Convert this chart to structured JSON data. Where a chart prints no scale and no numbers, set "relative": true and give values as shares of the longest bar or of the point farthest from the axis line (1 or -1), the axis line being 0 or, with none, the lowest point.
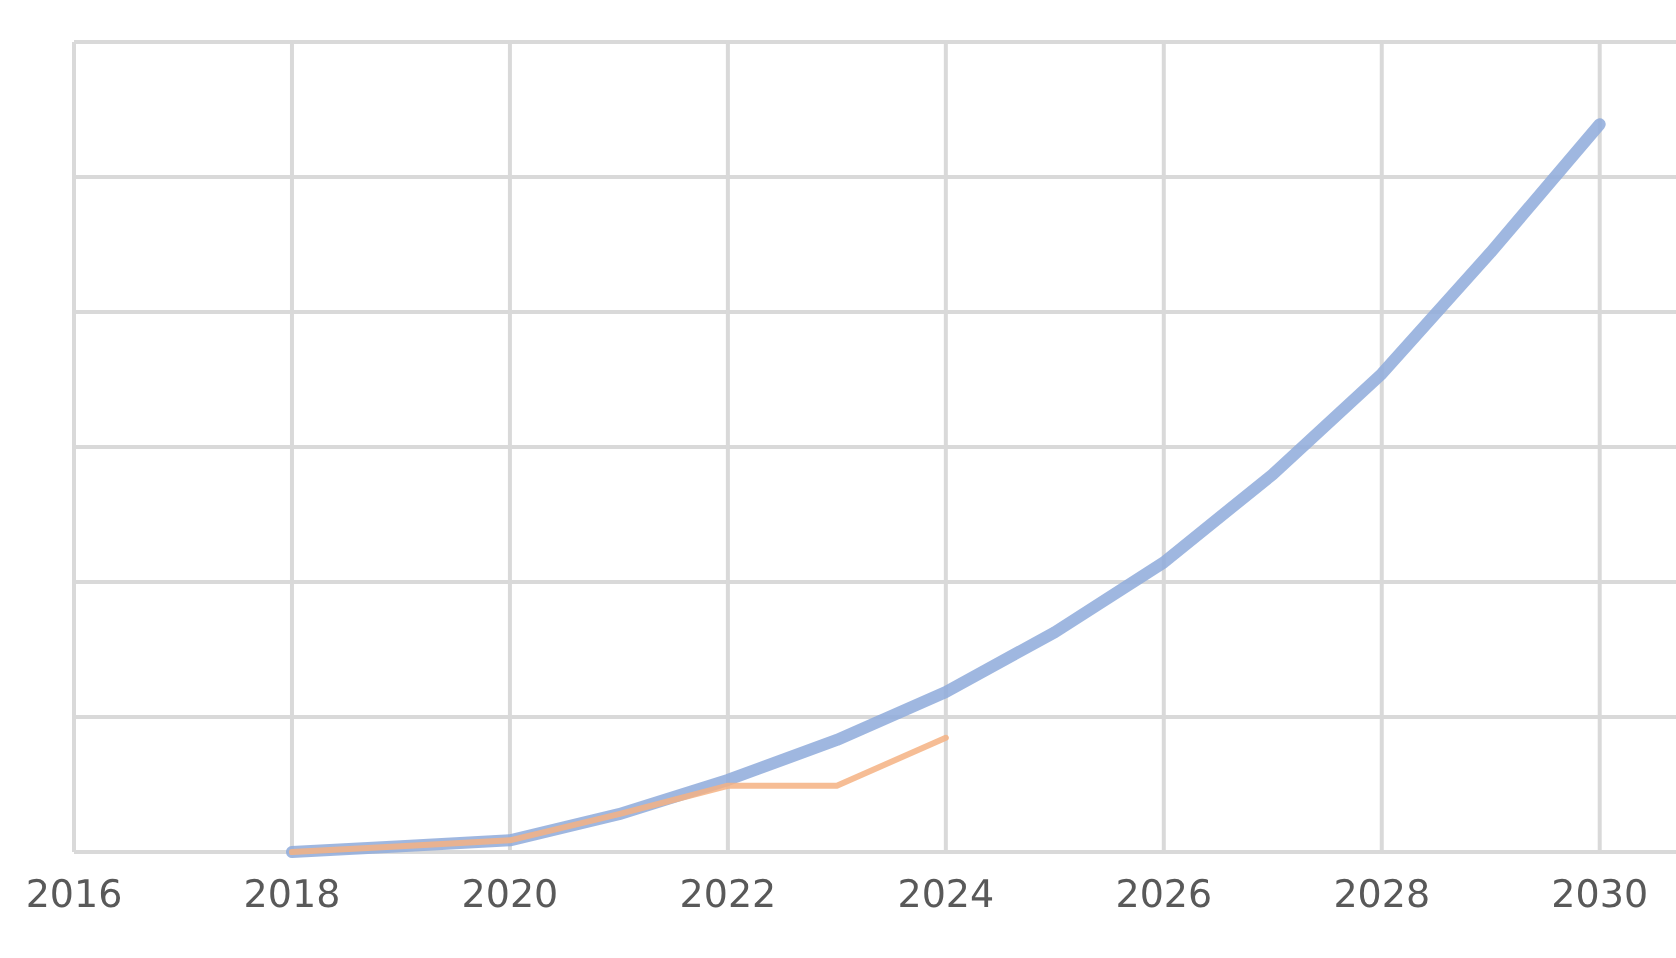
{
  "chart_data": {
    "type": "line",
    "relative": true,
    "xlim": [
      2016,
      2030.7
    ],
    "xticks": [
      2016,
      2018,
      2020,
      2022,
      2024,
      2026,
      2028,
      2030
    ],
    "grid": true,
    "line_style": "solid",
    "marker": "none",
    "series": [
      {
        "color": "#8eaadb",
        "x": [
          2018,
          2019,
          2020,
          2021,
          2022,
          2023,
          2024,
          2025,
          2026,
          2027,
          2028,
          2029,
          2030
        ],
        "values": [
          0,
          0.008,
          0.016,
          0.052,
          0.099,
          0.154,
          0.22,
          0.302,
          0.398,
          0.519,
          0.657,
          0.824,
          1
        ]
      },
      {
        "color": "#f4b183",
        "x": [
          2018,
          2019,
          2020,
          2021,
          2022,
          2023,
          2024
        ],
        "values": [
          0,
          0.008,
          0.016,
          0.052,
          0.091,
          0.091,
          0.157
        ]
      }
    ]
  }
}
